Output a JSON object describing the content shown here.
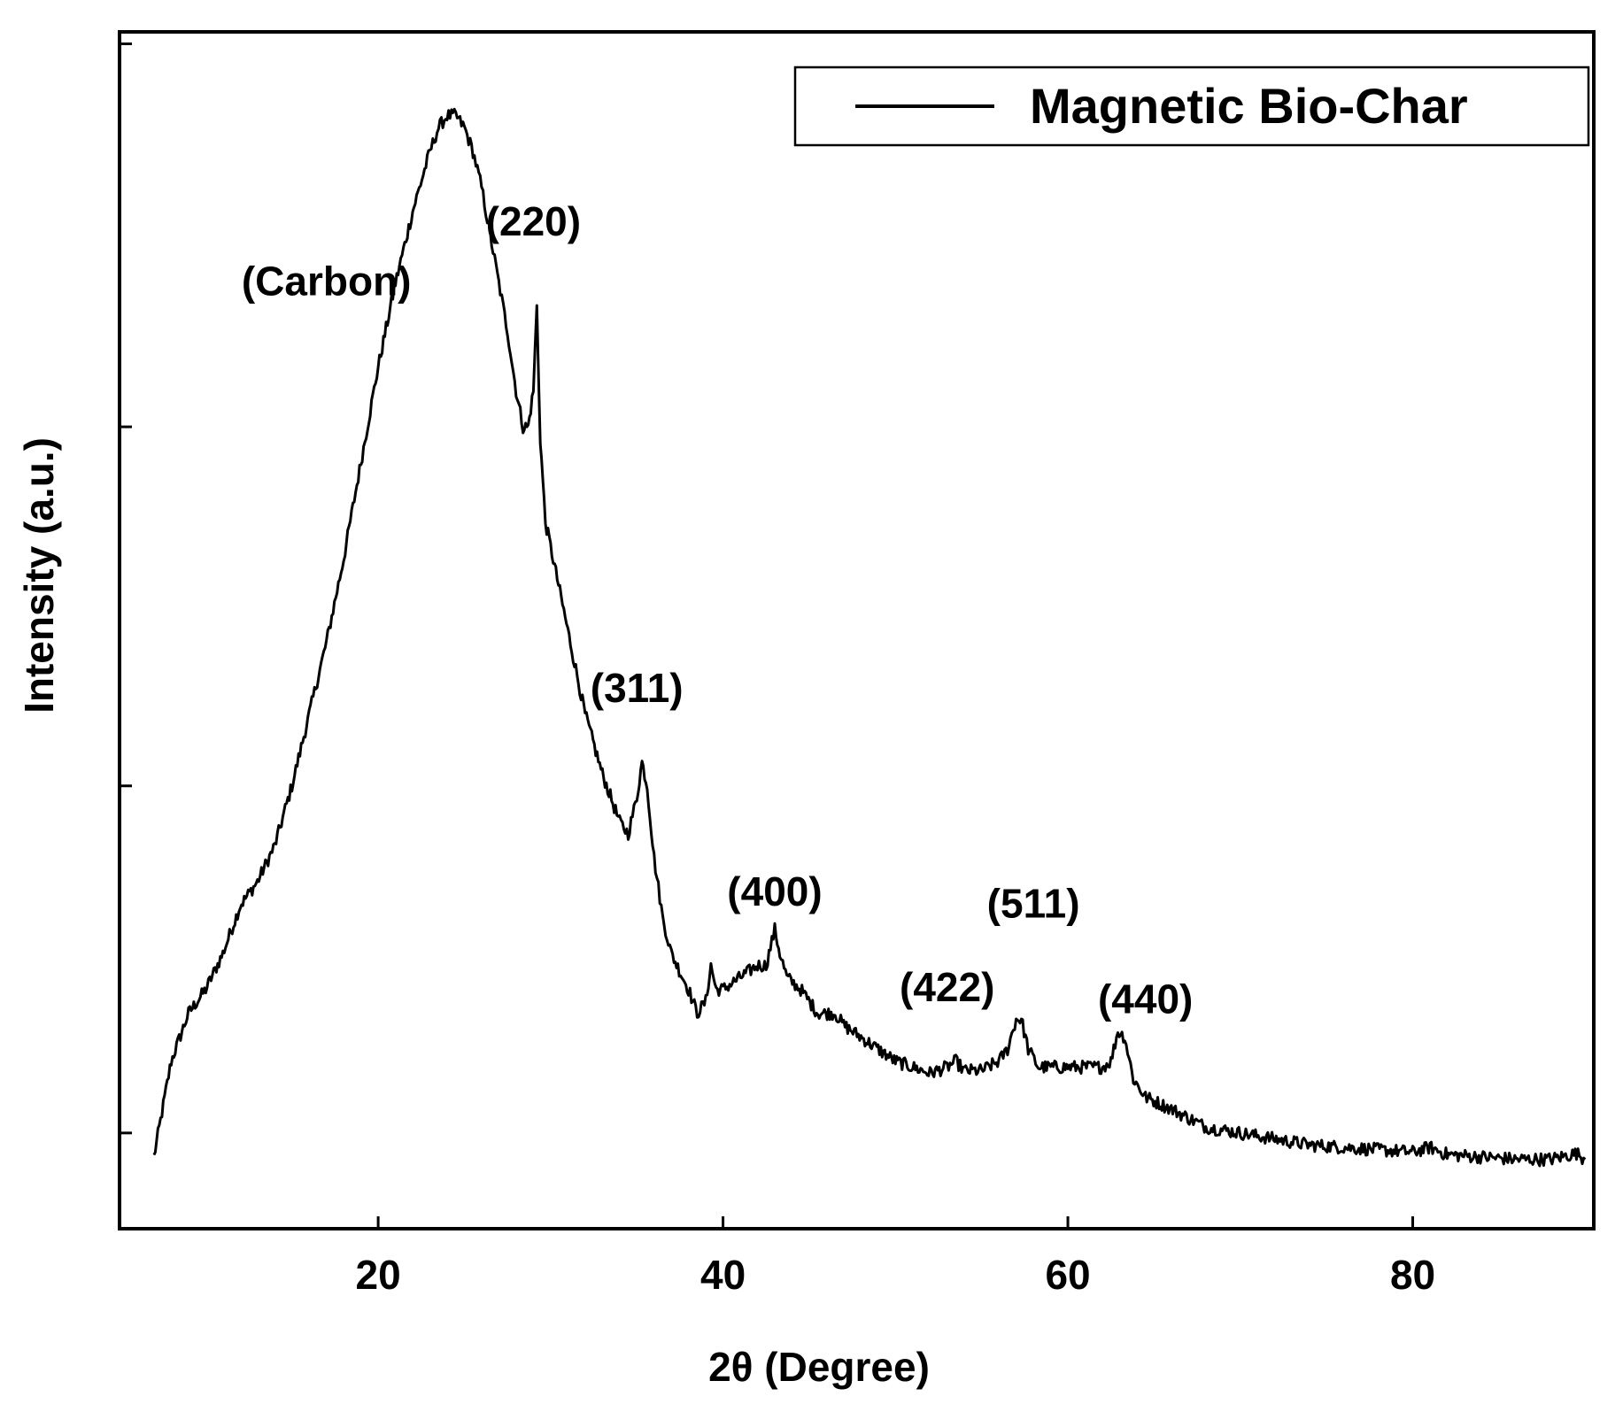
{
  "chart_data": {
    "type": "line",
    "title": "",
    "xlabel": "2θ (Degree)",
    "ylabel": "Intensity (a.u.)",
    "xlim": [
      5,
      90.5
    ],
    "ylim": [
      0,
      100
    ],
    "x_ticks": [
      20,
      40,
      60,
      80
    ],
    "x_tick_labels": [
      "20",
      "40",
      "60",
      "80"
    ],
    "y_ticks": [
      8,
      37,
      67,
      99
    ],
    "y_tick_labels_shown": false,
    "grid": false,
    "legend": {
      "placement": "top-right",
      "entries": [
        "Magnetic Bio-Char"
      ]
    },
    "series": [
      {
        "name": "Magnetic Bio-Char",
        "color": "#000000",
        "x": [
          7.0,
          8.0,
          9.0,
          10.0,
          11.0,
          12.0,
          13.0,
          14.0,
          15.0,
          16.0,
          17.0,
          18.0,
          19.0,
          20.0,
          21.0,
          22.0,
          23.0,
          23.5,
          24.0,
          24.5,
          25.0,
          25.5,
          26.0,
          26.5,
          27.0,
          27.5,
          28.0,
          28.4,
          28.7,
          29.0,
          29.2,
          29.4,
          29.7,
          30.0,
          31.0,
          32.0,
          33.0,
          34.0,
          34.5,
          35.0,
          35.3,
          35.6,
          36.0,
          36.5,
          37.0,
          38.0,
          38.5,
          39.0,
          39.3,
          39.6,
          40.0,
          41.0,
          42.0,
          42.5,
          43.0,
          43.3,
          43.7,
          44.5,
          45.5,
          46.5,
          47.0,
          48.0,
          49.0,
          50.0,
          51.0,
          52.0,
          53.0,
          53.5,
          54.0,
          55.0,
          56.0,
          56.5,
          57.0,
          57.3,
          57.7,
          58.3,
          59.0,
          60.0,
          61.0,
          62.0,
          62.5,
          62.9,
          63.3,
          63.8,
          64.5,
          66.0,
          68.0,
          70.0,
          72.0,
          74.0,
          76.0,
          78.0,
          80.0,
          81.0,
          82.0,
          84.0,
          86.0,
          88.0,
          89.5,
          90.0
        ],
        "y": [
          6,
          14,
          18,
          20,
          23,
          27,
          29,
          32,
          37,
          43,
          49,
          56,
          64,
          72,
          79,
          85,
          90,
          92,
          93,
          93,
          92,
          90,
          87,
          83,
          79,
          75,
          70,
          67,
          67,
          70,
          77,
          66,
          59,
          57,
          50,
          43,
          38,
          34,
          33,
          36,
          39,
          37,
          31,
          26,
          23,
          20,
          18,
          19,
          22,
          20,
          20,
          21,
          22,
          22,
          25,
          23,
          21,
          20,
          18,
          18,
          17,
          16,
          15,
          14,
          13.5,
          13,
          13.5,
          14,
          13.2,
          13.2,
          14,
          15,
          17.5,
          17.5,
          15,
          13.5,
          13.5,
          13.5,
          13.5,
          13.5,
          14,
          16.5,
          16,
          12.5,
          11,
          10,
          8.5,
          8,
          7.5,
          7,
          6.8,
          6.6,
          6.4,
          6.8,
          6.2,
          6.0,
          5.8,
          5.8,
          6.3,
          5.8
        ]
      }
    ],
    "annotations": [
      {
        "text": "(Carbon)",
        "x": 17.0,
        "y": 78
      },
      {
        "text": "(220)",
        "x": 29.0,
        "y": 83
      },
      {
        "text": "(311)",
        "x": 35.0,
        "y": 44
      },
      {
        "text": "(400)",
        "x": 43.0,
        "y": 27
      },
      {
        "text": "(422)",
        "x": 53.0,
        "y": 19
      },
      {
        "text": "(511)",
        "x": 58.0,
        "y": 26
      },
      {
        "text": "(440)",
        "x": 64.5,
        "y": 18
      }
    ]
  }
}
